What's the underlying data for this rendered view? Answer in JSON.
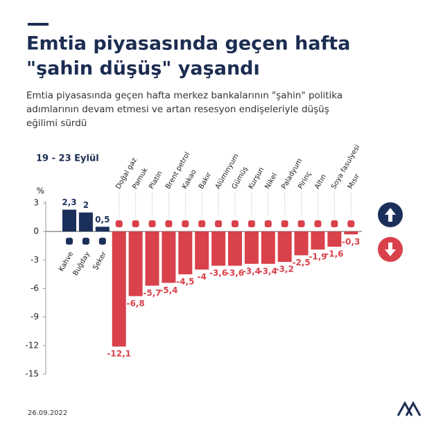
{
  "title_lines": [
    "Emtia piyasasında geçen hafta",
    "\"şahin düşüş\" yaşandı"
  ],
  "subtitle_lines": [
    "Emtia piyasasında geçen hafta merkez bankalarının \"şahin\" politika",
    "adımlarının devam etmesi ve artan resesyon endişeleriyle düşüş",
    "eğilimi sürdü"
  ],
  "period": "19 - 23 Eylül",
  "date": "26.09.2022",
  "chart_data": {
    "type": "bar",
    "y_unit": "%",
    "categories": [
      "Kahve",
      "Buğday",
      "Şeker",
      "Doğal gaz",
      "Pamuk",
      "Platin",
      "Brent petrol",
      "Kakao",
      "Bakır",
      "Alüminyum",
      "Gümüş",
      "Kurşun",
      "Nikel",
      "Paladyum",
      "Pirinç",
      "Altın",
      "Soya fasulyesi",
      "Mısır"
    ],
    "values": [
      2.3,
      2,
      0.5,
      -12.1,
      -6.8,
      -5.7,
      -5.4,
      -4.5,
      -4,
      -3.6,
      -3.6,
      -3.4,
      -3.4,
      -3.2,
      -2.5,
      -1.9,
      -1.6,
      -0.3
    ],
    "value_labels": [
      "2,3",
      "2",
      "0,5",
      "-12,1",
      "-6,8",
      "-5,7",
      "-5,4",
      "-4,5",
      "-4",
      "-3,6",
      "-3,6",
      "-3,4",
      "-3,4",
      "-3,2",
      "-2,5",
      "-1,9",
      "-1,6",
      "-0,3"
    ],
    "positive_color": "#1b2f5b",
    "negative_color": "#d9414b",
    "ylim": [
      -15,
      3
    ],
    "yticks": [
      3,
      0,
      -3,
      -6,
      -9,
      -12,
      -15
    ],
    "grid": false
  }
}
